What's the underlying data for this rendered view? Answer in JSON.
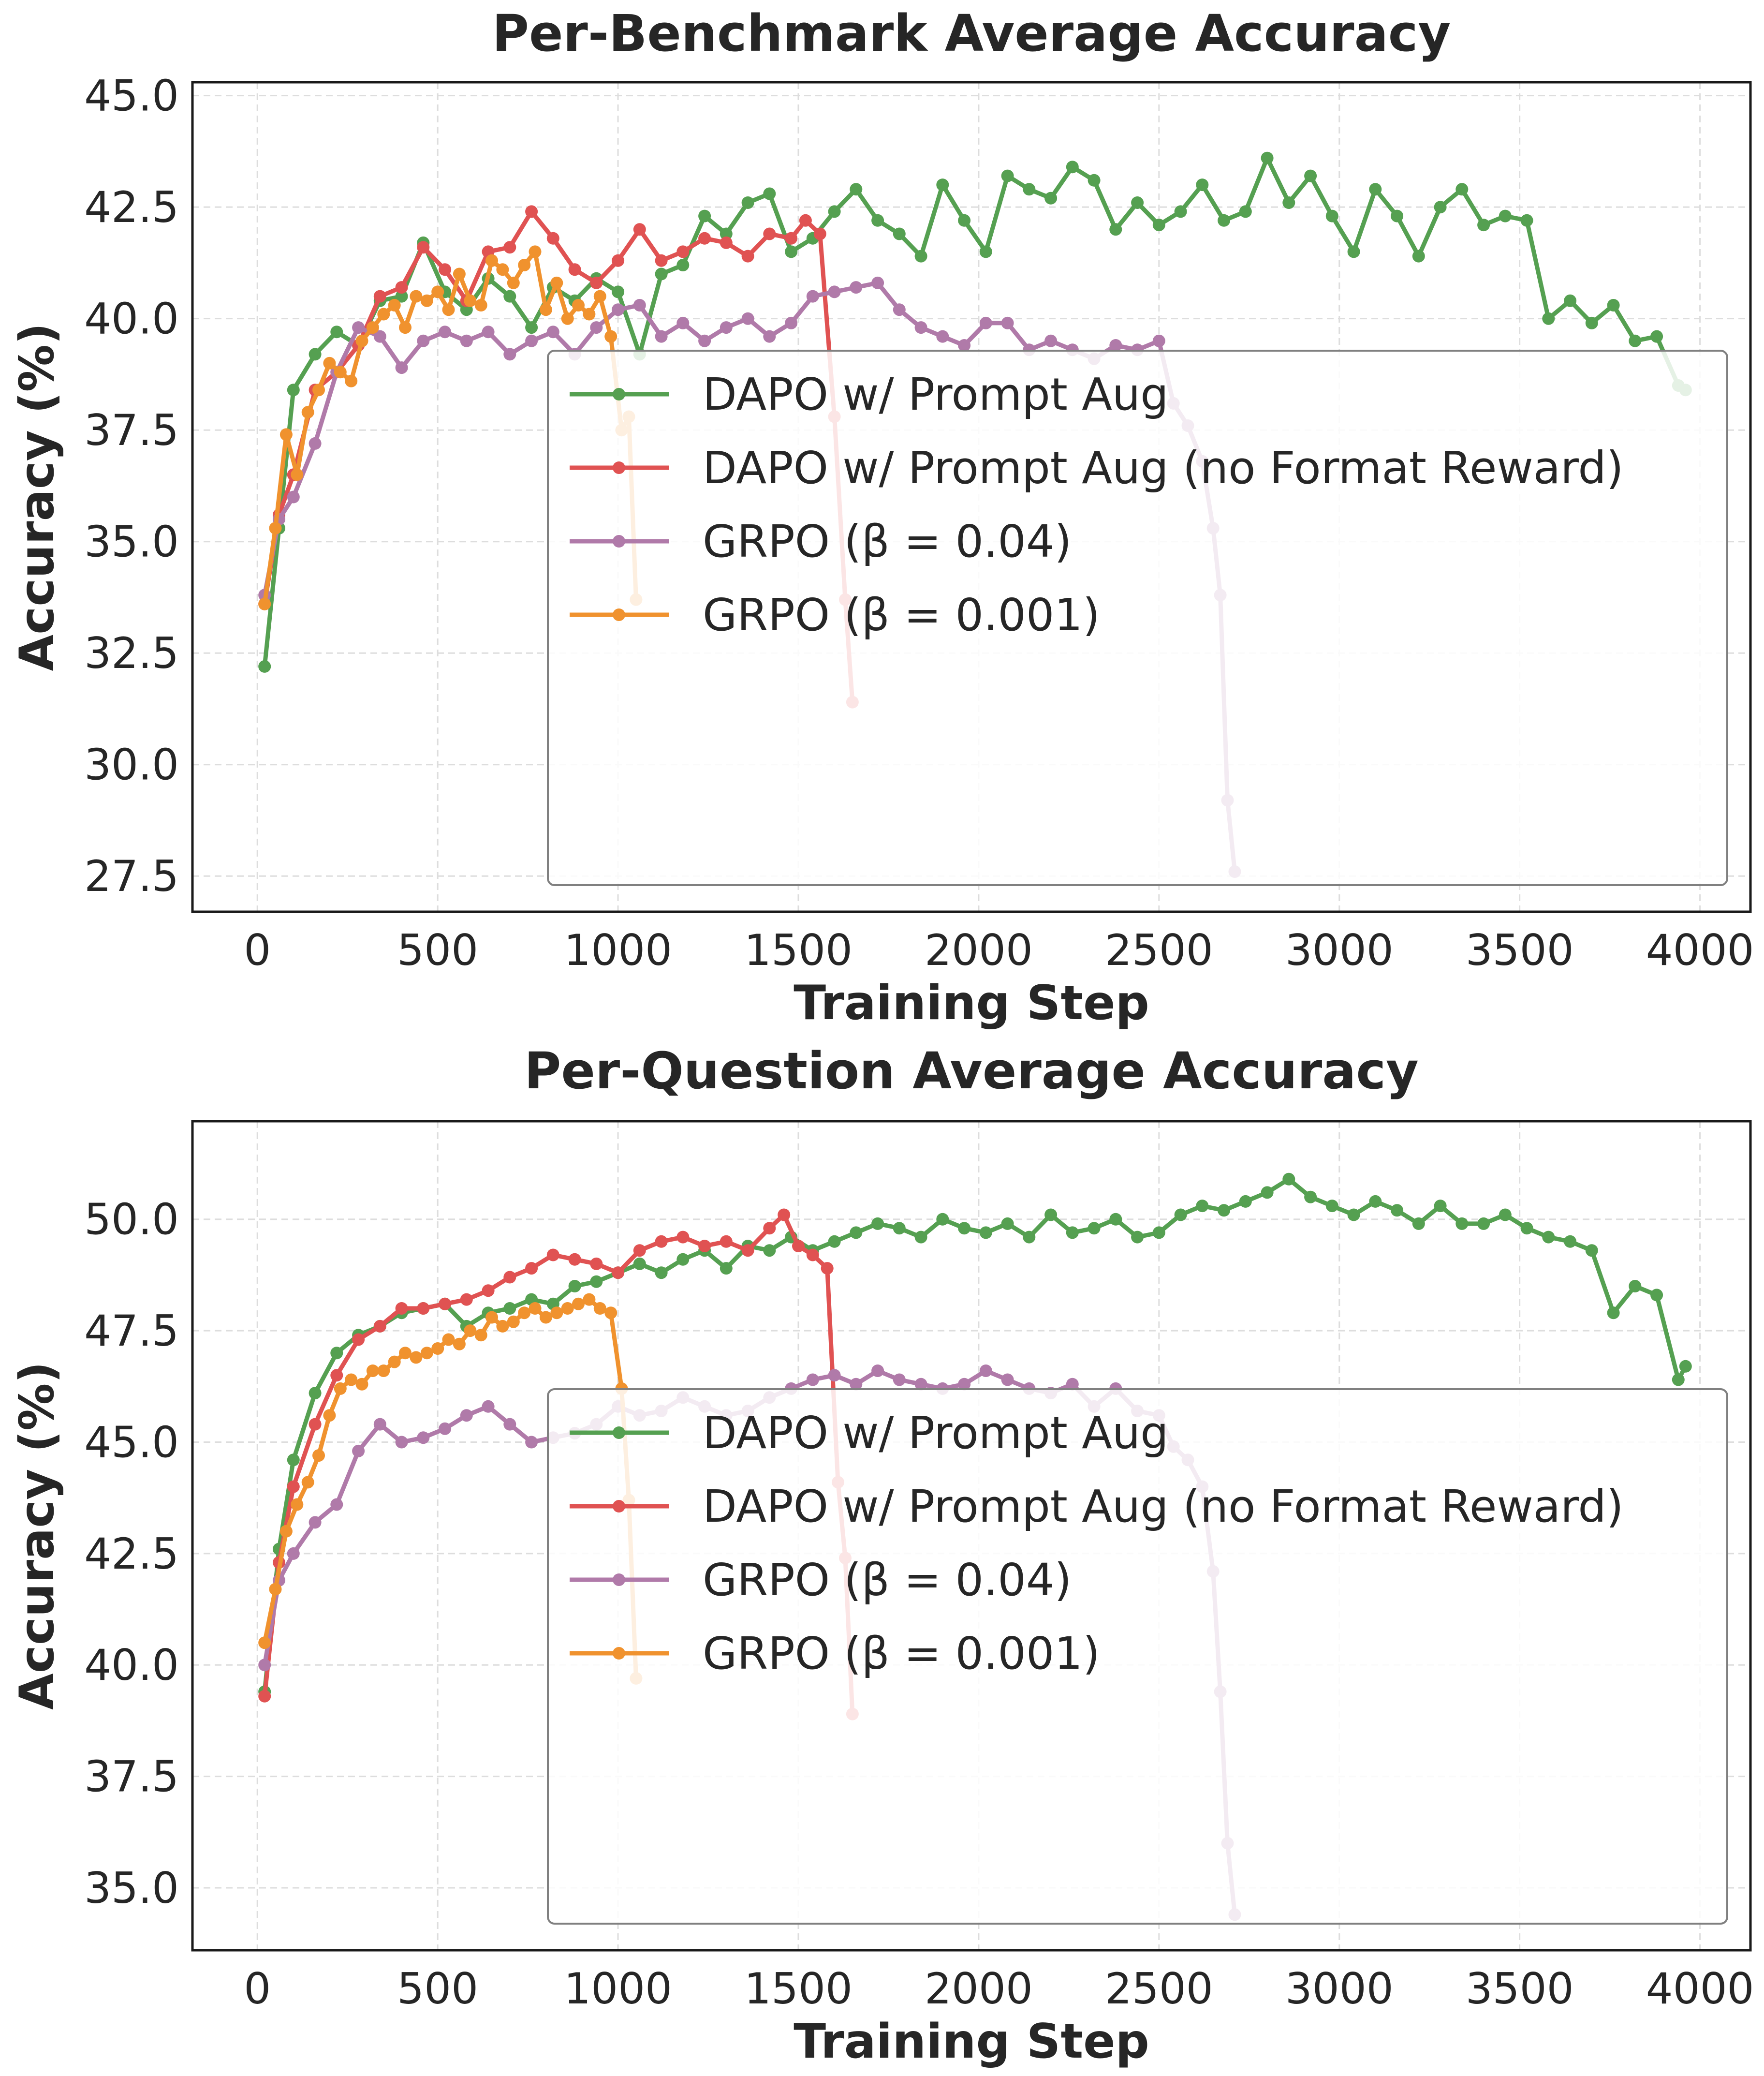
{
  "chart_data": [
    {
      "type": "line",
      "title": "Per-Benchmark Average Accuracy",
      "xlabel": "Training Step",
      "ylabel": "Accuracy (%)",
      "xlim": [
        -180,
        4140
      ],
      "ylim": [
        26.7,
        45.3
      ],
      "xticks": [
        0,
        500,
        1000,
        1500,
        2000,
        2500,
        3000,
        3500,
        4000
      ],
      "yticks": [
        27.5,
        30.0,
        32.5,
        35.0,
        37.5,
        40.0,
        42.5,
        45.0
      ],
      "xtick_labels": [
        "0",
        "500",
        "1000",
        "1500",
        "2000",
        "2500",
        "3000",
        "3500",
        "4000"
      ],
      "ytick_labels": [
        "27.5",
        "30.0",
        "32.5",
        "35.0",
        "37.5",
        "40.0",
        "42.5",
        "45.0"
      ],
      "grid": true,
      "legend_position": "lower-right",
      "series": [
        {
          "name": "DAPO w/ Prompt Aug",
          "color": "#55a051",
          "x": [
            20,
            60,
            100,
            160,
            220,
            280,
            340,
            400,
            460,
            520,
            580,
            640,
            700,
            760,
            820,
            880,
            940,
            1000,
            1060,
            1120,
            1180,
            1240,
            1300,
            1360,
            1420,
            1480,
            1540,
            1600,
            1660,
            1720,
            1780,
            1840,
            1900,
            1960,
            2020,
            2080,
            2140,
            2200,
            2260,
            2320,
            2380,
            2440,
            2500,
            2560,
            2620,
            2680,
            2740,
            2800,
            2860,
            2920,
            2980,
            3040,
            3100,
            3160,
            3220,
            3280,
            3340,
            3400,
            3460,
            3520,
            3580,
            3640,
            3700,
            3760,
            3820,
            3880,
            3940,
            3960
          ],
          "values": [
            32.2,
            35.3,
            38.4,
            39.2,
            39.7,
            39.4,
            40.4,
            40.5,
            41.7,
            40.6,
            40.2,
            40.9,
            40.5,
            39.8,
            40.7,
            40.4,
            40.9,
            40.6,
            39.2,
            41.0,
            41.2,
            42.3,
            41.9,
            42.6,
            42.8,
            41.5,
            41.8,
            42.4,
            42.9,
            42.2,
            41.9,
            41.4,
            43.0,
            42.2,
            41.5,
            43.2,
            42.9,
            42.7,
            43.4,
            43.1,
            42.0,
            42.6,
            42.1,
            42.4,
            43.0,
            42.2,
            42.4,
            43.6,
            42.6,
            43.2,
            42.3,
            41.5,
            42.9,
            42.3,
            41.4,
            42.5,
            42.9,
            42.1,
            42.3,
            42.2,
            40.0,
            40.4,
            39.9,
            40.3,
            39.5,
            39.6,
            38.5,
            38.4
          ]
        },
        {
          "name": "DAPO w/ Prompt Aug (no Format Reward)",
          "color": "#e05252",
          "x": [
            20,
            60,
            100,
            160,
            220,
            280,
            340,
            400,
            460,
            520,
            580,
            640,
            700,
            760,
            820,
            880,
            940,
            1000,
            1060,
            1120,
            1180,
            1240,
            1300,
            1360,
            1420,
            1480,
            1520,
            1560,
            1600,
            1630,
            1650
          ],
          "values": [
            33.6,
            35.6,
            36.5,
            38.4,
            38.8,
            39.4,
            40.5,
            40.7,
            41.6,
            41.1,
            40.4,
            41.5,
            41.6,
            42.4,
            41.8,
            41.1,
            40.8,
            41.3,
            42.0,
            41.3,
            41.5,
            41.8,
            41.7,
            41.4,
            41.9,
            41.8,
            42.2,
            41.9,
            37.8,
            33.7,
            31.4
          ]
        },
        {
          "name": "GRPO (β = 0.04)",
          "color": "#b07aa9",
          "x": [
            20,
            60,
            100,
            160,
            220,
            280,
            340,
            400,
            460,
            520,
            580,
            640,
            700,
            760,
            820,
            880,
            940,
            1000,
            1060,
            1120,
            1180,
            1240,
            1300,
            1360,
            1420,
            1480,
            1540,
            1600,
            1660,
            1720,
            1780,
            1840,
            1900,
            1960,
            2020,
            2080,
            2140,
            2200,
            2260,
            2320,
            2380,
            2440,
            2500,
            2540,
            2580,
            2620,
            2650,
            2670,
            2690,
            2710
          ],
          "values": [
            33.8,
            35.5,
            36.0,
            37.2,
            38.8,
            39.8,
            39.6,
            38.9,
            39.5,
            39.7,
            39.5,
            39.7,
            39.2,
            39.5,
            39.7,
            39.2,
            39.8,
            40.2,
            40.3,
            39.6,
            39.9,
            39.5,
            39.8,
            40.0,
            39.6,
            39.9,
            40.5,
            40.6,
            40.7,
            40.8,
            40.2,
            39.8,
            39.6,
            39.4,
            39.9,
            39.9,
            39.3,
            39.5,
            39.3,
            39.1,
            39.4,
            39.3,
            39.5,
            38.1,
            37.6,
            36.8,
            35.3,
            33.8,
            29.2,
            27.6
          ]
        },
        {
          "name": "GRPO (β = 0.001)",
          "color": "#f0922e",
          "x": [
            20,
            50,
            80,
            110,
            140,
            170,
            200,
            230,
            260,
            290,
            320,
            350,
            380,
            410,
            440,
            470,
            500,
            530,
            560,
            590,
            620,
            650,
            680,
            710,
            740,
            770,
            800,
            830,
            860,
            890,
            920,
            950,
            980,
            1010,
            1030,
            1050
          ],
          "values": [
            33.6,
            35.3,
            37.4,
            36.5,
            37.9,
            38.4,
            39.0,
            38.8,
            38.6,
            39.5,
            39.8,
            40.1,
            40.3,
            39.8,
            40.5,
            40.4,
            40.6,
            40.2,
            41.0,
            40.4,
            40.3,
            41.3,
            41.1,
            40.8,
            41.2,
            41.5,
            40.2,
            40.8,
            40.0,
            40.3,
            40.1,
            40.5,
            39.6,
            37.5,
            37.8,
            33.7
          ]
        }
      ]
    },
    {
      "type": "line",
      "title": "Per-Question Average Accuracy",
      "xlabel": "Training Step",
      "ylabel": "Accuracy (%)",
      "xlim": [
        -180,
        4140
      ],
      "ylim": [
        33.6,
        52.2
      ],
      "xticks": [
        0,
        500,
        1000,
        1500,
        2000,
        2500,
        3000,
        3500,
        4000
      ],
      "yticks": [
        35.0,
        37.5,
        40.0,
        42.5,
        45.0,
        47.5,
        50.0
      ],
      "xtick_labels": [
        "0",
        "500",
        "1000",
        "1500",
        "2000",
        "2500",
        "3000",
        "3500",
        "4000"
      ],
      "ytick_labels": [
        "35.0",
        "37.5",
        "40.0",
        "42.5",
        "45.0",
        "47.5",
        "50.0"
      ],
      "grid": true,
      "legend_position": "lower-right",
      "series": [
        {
          "name": "DAPO w/ Prompt Aug",
          "color": "#55a051",
          "x": [
            20,
            60,
            100,
            160,
            220,
            280,
            340,
            400,
            460,
            520,
            580,
            640,
            700,
            760,
            820,
            880,
            940,
            1000,
            1060,
            1120,
            1180,
            1240,
            1300,
            1360,
            1420,
            1480,
            1540,
            1600,
            1660,
            1720,
            1780,
            1840,
            1900,
            1960,
            2020,
            2080,
            2140,
            2200,
            2260,
            2320,
            2380,
            2440,
            2500,
            2560,
            2620,
            2680,
            2740,
            2800,
            2860,
            2920,
            2980,
            3040,
            3100,
            3160,
            3220,
            3280,
            3340,
            3400,
            3460,
            3520,
            3580,
            3640,
            3700,
            3760,
            3820,
            3880,
            3940,
            3960
          ],
          "values": [
            39.4,
            42.6,
            44.6,
            46.1,
            47.0,
            47.4,
            47.6,
            47.9,
            48.0,
            48.1,
            47.6,
            47.9,
            48.0,
            48.2,
            48.1,
            48.5,
            48.6,
            48.8,
            49.0,
            48.8,
            49.1,
            49.3,
            48.9,
            49.4,
            49.3,
            49.6,
            49.3,
            49.5,
            49.7,
            49.9,
            49.8,
            49.6,
            50.0,
            49.8,
            49.7,
            49.9,
            49.6,
            50.1,
            49.7,
            49.8,
            50.0,
            49.6,
            49.7,
            50.1,
            50.3,
            50.2,
            50.4,
            50.6,
            50.9,
            50.5,
            50.3,
            50.1,
            50.4,
            50.2,
            49.9,
            50.3,
            49.9,
            49.9,
            50.1,
            49.8,
            49.6,
            49.5,
            49.3,
            47.9,
            48.5,
            48.3,
            46.4,
            46.7
          ]
        },
        {
          "name": "DAPO w/ Prompt Aug (no Format Reward)",
          "color": "#e05252",
          "x": [
            20,
            60,
            100,
            160,
            220,
            280,
            340,
            400,
            460,
            520,
            580,
            640,
            700,
            760,
            820,
            880,
            940,
            1000,
            1060,
            1120,
            1180,
            1240,
            1300,
            1360,
            1420,
            1460,
            1500,
            1540,
            1580,
            1610,
            1630,
            1650
          ],
          "values": [
            39.3,
            42.3,
            44.0,
            45.4,
            46.5,
            47.3,
            47.6,
            48.0,
            48.0,
            48.1,
            48.2,
            48.4,
            48.7,
            48.9,
            49.2,
            49.1,
            49.0,
            48.8,
            49.3,
            49.5,
            49.6,
            49.4,
            49.5,
            49.3,
            49.8,
            50.1,
            49.4,
            49.2,
            48.9,
            44.1,
            42.4,
            38.9
          ]
        },
        {
          "name": "GRPO (β = 0.04)",
          "color": "#b07aa9",
          "x": [
            20,
            60,
            100,
            160,
            220,
            280,
            340,
            400,
            460,
            520,
            580,
            640,
            700,
            760,
            820,
            880,
            940,
            1000,
            1060,
            1120,
            1180,
            1240,
            1300,
            1360,
            1420,
            1480,
            1540,
            1600,
            1660,
            1720,
            1780,
            1840,
            1900,
            1960,
            2020,
            2080,
            2140,
            2200,
            2260,
            2320,
            2380,
            2440,
            2500,
            2540,
            2580,
            2620,
            2650,
            2670,
            2690,
            2710
          ],
          "values": [
            40.0,
            41.9,
            42.5,
            43.2,
            43.6,
            44.8,
            45.4,
            45.0,
            45.1,
            45.3,
            45.6,
            45.8,
            45.4,
            45.0,
            45.1,
            45.2,
            45.4,
            45.8,
            45.6,
            45.7,
            46.0,
            45.8,
            45.6,
            45.7,
            46.0,
            46.2,
            46.4,
            46.5,
            46.3,
            46.6,
            46.4,
            46.3,
            46.2,
            46.3,
            46.6,
            46.4,
            46.2,
            46.1,
            46.3,
            45.8,
            46.2,
            45.7,
            45.6,
            44.9,
            44.6,
            44.0,
            42.1,
            39.4,
            36.0,
            34.4
          ]
        },
        {
          "name": "GRPO (β = 0.001)",
          "color": "#f0922e",
          "x": [
            20,
            50,
            80,
            110,
            140,
            170,
            200,
            230,
            260,
            290,
            320,
            350,
            380,
            410,
            440,
            470,
            500,
            530,
            560,
            590,
            620,
            650,
            680,
            710,
            740,
            770,
            800,
            830,
            860,
            890,
            920,
            950,
            980,
            1010,
            1030,
            1050
          ],
          "values": [
            40.5,
            41.7,
            43.0,
            43.6,
            44.1,
            44.7,
            45.6,
            46.2,
            46.4,
            46.3,
            46.6,
            46.6,
            46.8,
            47.0,
            46.9,
            47.0,
            47.1,
            47.3,
            47.2,
            47.5,
            47.4,
            47.8,
            47.6,
            47.7,
            47.9,
            48.0,
            47.8,
            47.9,
            48.0,
            48.1,
            48.2,
            48.0,
            47.9,
            46.2,
            43.7,
            39.7
          ]
        }
      ]
    }
  ]
}
